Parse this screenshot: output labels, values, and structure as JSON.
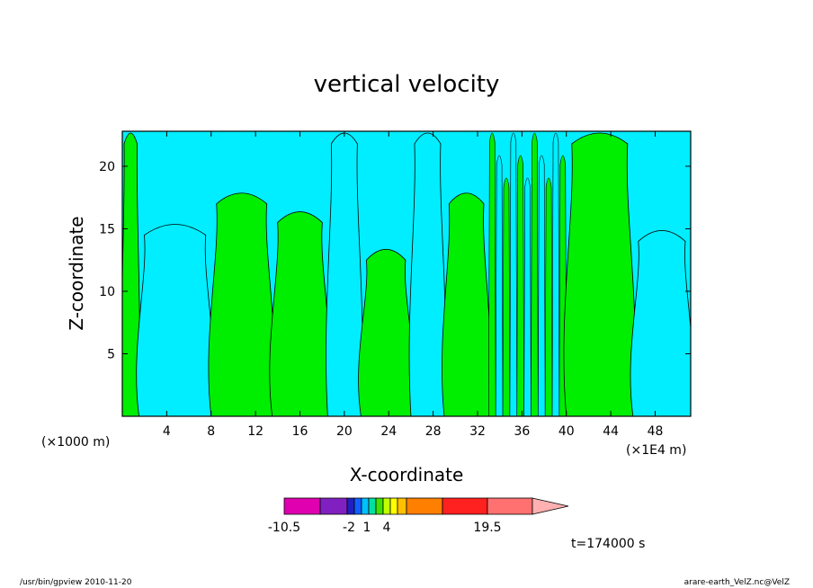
{
  "chart_data": {
    "type": "heatmap",
    "title": "vertical velocity",
    "xlabel": "X-coordinate",
    "ylabel": "Z-coordinate",
    "x_unit_left": "(×1000 m)",
    "x_unit_right": "(×1E4 m)",
    "x_ticks": [
      "4",
      "8",
      "12",
      "16",
      "20",
      "24",
      "28",
      "32",
      "36",
      "40",
      "44",
      "48"
    ],
    "y_ticks": [
      "5",
      "10",
      "15",
      "20"
    ],
    "xlim": [
      0,
      51.2
    ],
    "ylim": [
      0,
      22.8
    ],
    "regions": [
      {
        "x0": 0.0,
        "x1": 1.5,
        "zmax": 22.8,
        "sign": "positive"
      },
      {
        "x0": 1.5,
        "x1": 8.0,
        "zmax": 15.5,
        "sign": "negative"
      },
      {
        "x0": 8.0,
        "x1": 13.5,
        "zmax": 18.0,
        "sign": "positive"
      },
      {
        "x0": 13.5,
        "x1": 18.5,
        "zmax": 16.5,
        "sign": "positive"
      },
      {
        "x0": 18.5,
        "x1": 21.5,
        "zmax": 22.8,
        "sign": "negative"
      },
      {
        "x0": 21.5,
        "x1": 26.0,
        "zmax": 13.5,
        "sign": "positive"
      },
      {
        "x0": 26.0,
        "x1": 29.0,
        "zmax": 22.8,
        "sign": "negative"
      },
      {
        "x0": 29.0,
        "x1": 33.0,
        "zmax": 18.0,
        "sign": "positive"
      },
      {
        "x0": 33.0,
        "x1": 40.0,
        "zmax": 22.8,
        "sign": "mixed"
      },
      {
        "x0": 40.0,
        "x1": 46.0,
        "zmax": 22.8,
        "sign": "positive"
      },
      {
        "x0": 46.0,
        "x1": 51.2,
        "zmax": 15.0,
        "sign": "negative"
      }
    ],
    "colorbar": {
      "labels": [
        "-10.5",
        "-2",
        "1",
        "4",
        "19.5"
      ],
      "colors": [
        "#e000b0",
        "#8020c0",
        "#2020c0",
        "#1060ff",
        "#00c0ff",
        "#00e0a0",
        "#40e000",
        "#c0ff00",
        "#ffff00",
        "#ffc000",
        "#ff8000",
        "#ff2020",
        "#ff7070",
        "#ffb0b0"
      ]
    },
    "positive_color": "#00ee00",
    "negative_color": "#00eeff"
  },
  "time_label": "t=174000 s",
  "footer_left": "/usr/bin/gpview   2010-11-20",
  "footer_right": "arare-earth_VelZ.nc@VelZ"
}
